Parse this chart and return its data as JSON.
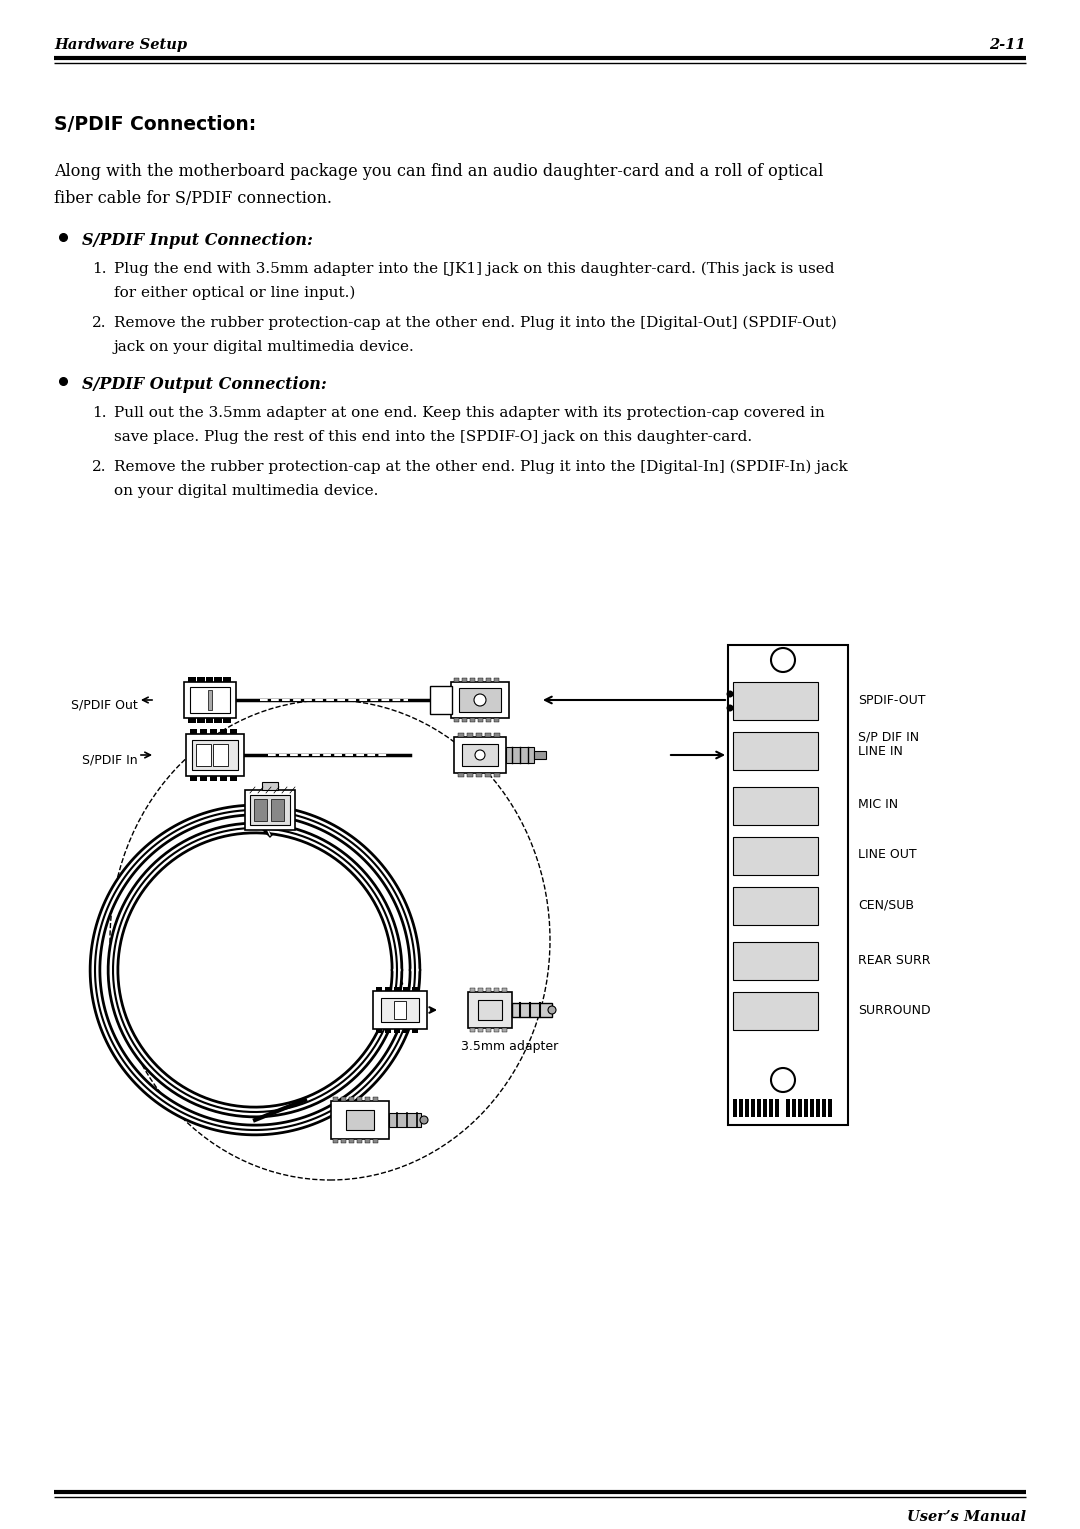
{
  "bg_color": "#ffffff",
  "header_left": "Hardware Setup",
  "header_right": "2-11",
  "footer_right": "User’s Manual",
  "title": "S/PDIF Connection:",
  "intro_line1": "Along with the motherboard package you can find an audio daughter-card and a roll of optical",
  "intro_line2": "fiber cable for S/PDIF connection.",
  "bullet1_title": "S/PDIF Input Connection:",
  "bullet1_item1_line1": "Plug the end with 3.5mm adapter into the [JK1] jack on this daughter-card. (This jack is used",
  "bullet1_item1_line2": "for either optical or line input.)",
  "bullet1_item2_line1": "Remove the rubber protection-cap at the other end. Plug it into the [Digital-Out] (SPDIF-Out)",
  "bullet1_item2_line2": "jack on your digital multimedia device.",
  "bullet2_title": "S/PDIF Output Connection:",
  "bullet2_item1_line1": "Pull out the 3.5mm adapter at one end. Keep this adapter with its protection-cap covered in",
  "bullet2_item1_line2": "save place. Plug the rest of this end into the [SPDIF-O] jack on this daughter-card.",
  "bullet2_item2_line1": "Remove the rubber protection-cap at the other end. Plug it into the [Digital-In] (SPDIF-In) jack",
  "bullet2_item2_line2": "on your digital multimedia device.",
  "label_spdif_out": "S/PDIF Out",
  "label_spdif_in": "S/PDIF In",
  "port_labels": [
    "SPDIF-OUT",
    "S/P DIF IN\nLINE IN",
    "MIC IN",
    "LINE OUT",
    "CEN/SUB",
    "REAR SURR",
    "SURROUND"
  ],
  "adapter_label": "3.5mm adapter"
}
